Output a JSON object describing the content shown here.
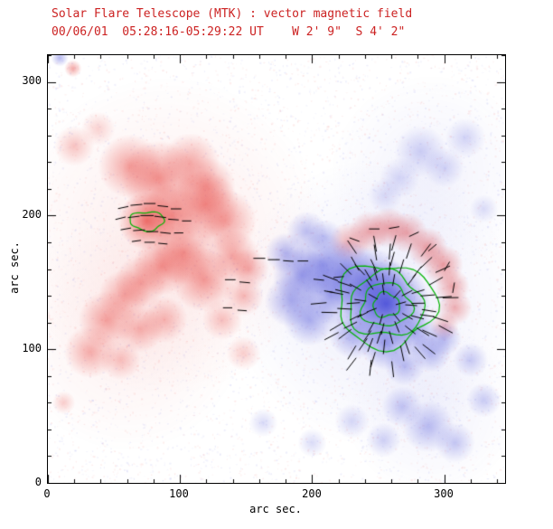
{
  "chart_data": {
    "type": "heatmap",
    "title": {
      "line1": "Solar Flare Telescope (MTK) : vector magnetic field",
      "line2": "00/06/01  05:28:16-05:29:22 UT    W 2' 9\"  S 4' 2\""
    },
    "axes": {
      "x_label": "arc sec.",
      "y_label": "arc sec.",
      "x_ticks": [
        "0",
        "100",
        "200",
        "300"
      ],
      "y_ticks": [
        "0",
        "100",
        "200",
        "300"
      ]
    },
    "x_range": [
      0,
      346
    ],
    "y_range": [
      0,
      320
    ],
    "major_step": 100,
    "minor_step": 20,
    "seed": 1234567,
    "colors": {
      "title": "#cc2222",
      "red_rgb": "230,60,55",
      "blue_rgb": "70,75,215",
      "contour": "#00b400",
      "vector": "#000000"
    },
    "noise": {
      "count": 5200,
      "alpha_min": 0.03,
      "alpha_max": 0.11
    },
    "blobs": [
      [
        62,
        237,
        11,
        0.45,
        1
      ],
      [
        84,
        228,
        13,
        0.55,
        1
      ],
      [
        108,
        240,
        10,
        0.4,
        1
      ],
      [
        120,
        222,
        10,
        0.45,
        1
      ],
      [
        75,
        196,
        10,
        0.7,
        1
      ],
      [
        94,
        200,
        11,
        0.55,
        1
      ],
      [
        118,
        208,
        12,
        0.5,
        1
      ],
      [
        134,
        196,
        11,
        0.45,
        1
      ],
      [
        103,
        172,
        11,
        0.55,
        1
      ],
      [
        86,
        162,
        10,
        0.5,
        1
      ],
      [
        70,
        150,
        9,
        0.4,
        1
      ],
      [
        118,
        152,
        11,
        0.5,
        1
      ],
      [
        140,
        170,
        9,
        0.45,
        1
      ],
      [
        152,
        160,
        7,
        0.4,
        1
      ],
      [
        148,
        140,
        7,
        0.35,
        1
      ],
      [
        58,
        140,
        9,
        0.4,
        1
      ],
      [
        45,
        122,
        10,
        0.45,
        1
      ],
      [
        32,
        98,
        9,
        0.4,
        1
      ],
      [
        55,
        92,
        7,
        0.3,
        1
      ],
      [
        88,
        122,
        8,
        0.35,
        1
      ],
      [
        70,
        115,
        8,
        0.38,
        1
      ],
      [
        132,
        122,
        7,
        0.3,
        1
      ],
      [
        20,
        252,
        7,
        0.3,
        1
      ],
      [
        38,
        265,
        6,
        0.22,
        1
      ],
      [
        148,
        97,
        6,
        0.25,
        1
      ],
      [
        19,
        310,
        3,
        0.45,
        1
      ],
      [
        12,
        60,
        4,
        0.25,
        1
      ],
      [
        228,
        180,
        7,
        0.4,
        1
      ],
      [
        243,
        188,
        7,
        0.45,
        1
      ],
      [
        258,
        191,
        7,
        0.45,
        1
      ],
      [
        272,
        187,
        7,
        0.45,
        1
      ],
      [
        287,
        176,
        7,
        0.5,
        1
      ],
      [
        299,
        163,
        7,
        0.5,
        1
      ],
      [
        306,
        147,
        6,
        0.45,
        1
      ],
      [
        308,
        131,
        6,
        0.4,
        1
      ],
      [
        300,
        117,
        5,
        0.35,
        1
      ],
      [
        90,
        185,
        55,
        0.1,
        1
      ],
      [
        60,
        110,
        40,
        0.08,
        1
      ],
      [
        256,
        134,
        15,
        0.9,
        -1
      ],
      [
        243,
        148,
        13,
        0.6,
        -1
      ],
      [
        226,
        158,
        11,
        0.5,
        -1
      ],
      [
        208,
        163,
        11,
        0.5,
        -1
      ],
      [
        192,
        155,
        10,
        0.5,
        -1
      ],
      [
        184,
        136,
        9,
        0.45,
        -1
      ],
      [
        198,
        122,
        9,
        0.45,
        -1
      ],
      [
        214,
        140,
        10,
        0.5,
        -1
      ],
      [
        232,
        112,
        9,
        0.45,
        -1
      ],
      [
        256,
        104,
        9,
        0.5,
        -1
      ],
      [
        278,
        112,
        8,
        0.45,
        -1
      ],
      [
        290,
        98,
        7,
        0.4,
        -1
      ],
      [
        270,
        88,
        7,
        0.35,
        -1
      ],
      [
        300,
        108,
        6,
        0.35,
        -1
      ],
      [
        180,
        172,
        7,
        0.4,
        -1
      ],
      [
        196,
        188,
        7,
        0.35,
        -1
      ],
      [
        210,
        184,
        6,
        0.3,
        -1
      ],
      [
        282,
        248,
        9,
        0.25,
        -1
      ],
      [
        300,
        236,
        7,
        0.22,
        -1
      ],
      [
        266,
        228,
        7,
        0.2,
        -1
      ],
      [
        316,
        258,
        7,
        0.22,
        -1
      ],
      [
        330,
        205,
        5,
        0.18,
        -1
      ],
      [
        255,
        215,
        6,
        0.18,
        -1
      ],
      [
        268,
        57,
        7,
        0.3,
        -1
      ],
      [
        288,
        42,
        9,
        0.35,
        -1
      ],
      [
        308,
        30,
        7,
        0.3,
        -1
      ],
      [
        254,
        32,
        6,
        0.25,
        -1
      ],
      [
        230,
        46,
        6,
        0.22,
        -1
      ],
      [
        330,
        62,
        6,
        0.28,
        -1
      ],
      [
        320,
        92,
        6,
        0.28,
        -1
      ],
      [
        163,
        45,
        5,
        0.2,
        -1
      ],
      [
        200,
        30,
        5,
        0.2,
        -1
      ],
      [
        9,
        318,
        3,
        0.4,
        -1
      ],
      [
        250,
        135,
        50,
        0.1,
        -1
      ],
      [
        290,
        230,
        35,
        0.07,
        -1
      ],
      [
        290,
        55,
        30,
        0.07,
        -1
      ]
    ],
    "contours": [
      {
        "x": 75,
        "y": 196,
        "rings": [
          [
            13,
            7
          ]
        ]
      },
      {
        "x": 256,
        "y": 133,
        "rings": [
          [
            10,
            9
          ],
          [
            19,
            16
          ],
          [
            28,
            24
          ],
          [
            37,
            31
          ]
        ]
      }
    ],
    "radial_vectors": {
      "x": 256,
      "y": 133,
      "rings": [
        {
          "r": 12,
          "n": 7,
          "len": 8
        },
        {
          "r": 19,
          "n": 11,
          "len": 9
        },
        {
          "r": 26,
          "n": 14,
          "len": 10
        },
        {
          "r": 33,
          "n": 17,
          "len": 11
        },
        {
          "r": 41,
          "n": 18,
          "len": 12
        },
        {
          "r": 49,
          "n": 14,
          "len": 12
        }
      ]
    },
    "vectors": [
      [
        57,
        206,
        12,
        8
      ],
      [
        67,
        208,
        5,
        9
      ],
      [
        77,
        209,
        0,
        9
      ],
      [
        87,
        207,
        -6,
        8
      ],
      [
        97,
        205,
        0,
        8
      ],
      [
        55,
        198,
        14,
        8
      ],
      [
        65,
        199,
        7,
        9
      ],
      [
        75,
        200,
        0,
        10
      ],
      [
        85,
        199,
        -7,
        9
      ],
      [
        95,
        197,
        -4,
        8
      ],
      [
        105,
        196,
        0,
        7
      ],
      [
        59,
        190,
        10,
        8
      ],
      [
        69,
        189,
        4,
        9
      ],
      [
        79,
        188,
        0,
        9
      ],
      [
        89,
        187,
        -6,
        8
      ],
      [
        99,
        187,
        0,
        7
      ],
      [
        67,
        181,
        8,
        7
      ],
      [
        77,
        180,
        0,
        8
      ],
      [
        87,
        179,
        -5,
        7
      ],
      [
        138,
        152,
        0,
        8
      ],
      [
        149,
        150,
        -5,
        8
      ],
      [
        136,
        131,
        0,
        7
      ],
      [
        147,
        129,
        -4,
        7
      ],
      [
        160,
        168,
        0,
        9
      ],
      [
        171,
        167,
        0,
        9
      ],
      [
        182,
        166,
        -4,
        8
      ],
      [
        193,
        166,
        0,
        8
      ],
      [
        205,
        152,
        -6,
        8
      ],
      [
        213,
        143,
        -10,
        8
      ],
      [
        220,
        154,
        6,
        8
      ],
      [
        232,
        182,
        -20,
        8
      ],
      [
        247,
        190,
        0,
        8
      ],
      [
        262,
        191,
        10,
        8
      ],
      [
        277,
        186,
        25,
        8
      ],
      [
        291,
        176,
        40,
        8
      ],
      [
        302,
        162,
        60,
        8
      ],
      [
        307,
        146,
        80,
        8
      ]
    ]
  }
}
